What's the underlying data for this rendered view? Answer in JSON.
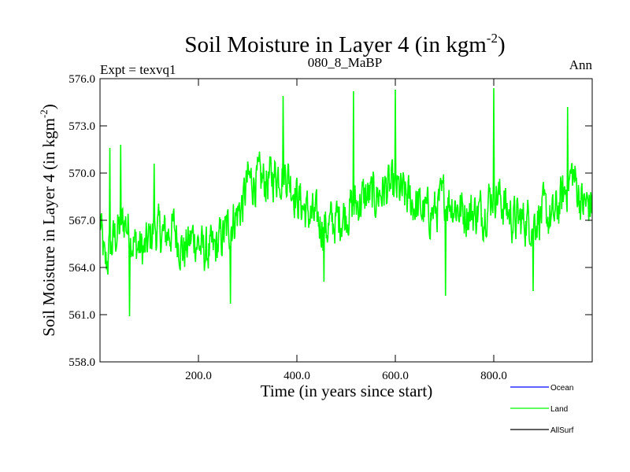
{
  "chart_data": {
    "type": "line",
    "title": "Soil Moisture in Layer 4 (in kgm",
    "title_superscript": "-2",
    "title_suffix": ")",
    "subtitle_left": "Expt = texvq1",
    "subtitle_center": "080_8_MaBP",
    "subtitle_right": "Ann",
    "xlabel": "Time (in years since start)",
    "ylabel": "Soil Moisture in Layer 4 (in kgm",
    "ylabel_superscript": "-2",
    "ylabel_suffix": ")",
    "xlim": [
      0,
      1000
    ],
    "ylim": [
      558.0,
      576.0
    ],
    "xticks": [
      200,
      400,
      600,
      800
    ],
    "xtick_labels": [
      "200.0",
      "400.0",
      "600.0",
      "800.0"
    ],
    "yticks": [
      558,
      561,
      564,
      567,
      570,
      573,
      576
    ],
    "ytick_labels": [
      "558.0",
      "561.0",
      "564.0",
      "567.0",
      "570.0",
      "573.0",
      "576.0"
    ],
    "legend": {
      "position": "bottom-right",
      "entries": [
        {
          "label": "Ocean",
          "color": "#0000ff"
        },
        {
          "label": "Land",
          "color": "#00ff00"
        },
        {
          "label": "AllSurf",
          "color": "#000000"
        }
      ]
    },
    "series": [
      {
        "name": "Land",
        "color": "#00ff00",
        "anchors_x": [
          0,
          10,
          30,
          50,
          70,
          90,
          110,
          130,
          150,
          170,
          190,
          210,
          230,
          250,
          270,
          290,
          300,
          320,
          340,
          360,
          380,
          400,
          420,
          440,
          460,
          480,
          500,
          520,
          540,
          560,
          580,
          600,
          620,
          640,
          660,
          680,
          700,
          720,
          740,
          760,
          780,
          800,
          820,
          840,
          860,
          880,
          900,
          920,
          940,
          960,
          980,
          1000
        ],
        "anchors_y": [
          567.0,
          564.0,
          566.0,
          567.0,
          565.5,
          565.0,
          566.5,
          566.0,
          566.5,
          565.0,
          566.0,
          565.0,
          565.0,
          566.0,
          567.0,
          568.0,
          569.5,
          569.5,
          569.5,
          570.0,
          570.0,
          568.5,
          567.5,
          567.0,
          566.5,
          567.0,
          567.5,
          568.0,
          568.5,
          568.5,
          569.0,
          569.0,
          568.5,
          568.0,
          567.5,
          567.5,
          568.5,
          568.0,
          567.5,
          567.5,
          567.5,
          569.0,
          568.0,
          567.0,
          567.0,
          567.0,
          567.5,
          567.0,
          568.5,
          570.0,
          568.0,
          568.0
        ],
        "noise_amplitude": 1.6,
        "step_years": 1,
        "peaks": [
          {
            "x": 20,
            "y": 571.6
          },
          {
            "x": 42,
            "y": 571.8
          },
          {
            "x": 60,
            "y": 560.9
          },
          {
            "x": 110,
            "y": 570.6
          },
          {
            "x": 265,
            "y": 561.7
          },
          {
            "x": 372,
            "y": 574.9
          },
          {
            "x": 455,
            "y": 563.1
          },
          {
            "x": 515,
            "y": 575.2
          },
          {
            "x": 600,
            "y": 575.3
          },
          {
            "x": 702,
            "y": 562.2
          },
          {
            "x": 800,
            "y": 575.4
          },
          {
            "x": 880,
            "y": 562.5
          },
          {
            "x": 950,
            "y": 574.2
          }
        ]
      }
    ]
  }
}
